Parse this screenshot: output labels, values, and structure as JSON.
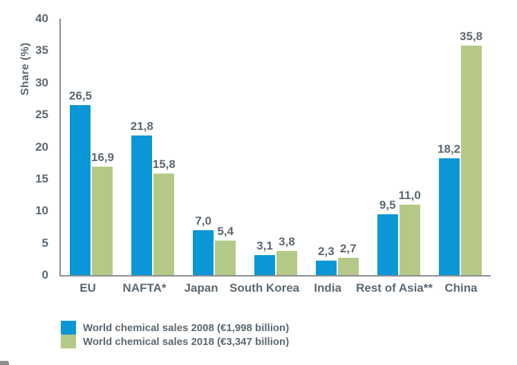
{
  "page": {
    "background_color": "#ffffff",
    "text_color": "#5b6770",
    "axis_color": "#8a8c8f"
  },
  "chart_data": {
    "type": "bar",
    "title": "",
    "ylabel": "Share (%)",
    "xlabel": "",
    "ylim": [
      0,
      40
    ],
    "yticks": [
      40,
      35,
      30,
      25,
      20,
      15,
      10,
      5,
      0
    ],
    "grid": false,
    "legend_position": "bottom-left",
    "decimal_style": "comma",
    "categories": [
      "EU",
      "NAFTA*",
      "Japan",
      "South Korea",
      "India",
      "Rest of Asia**",
      "China"
    ],
    "series": [
      {
        "name": "World chemical sales 2008 (€1,998 billion)",
        "color": "#0b97d5",
        "values": [
          26.5,
          21.8,
          7.0,
          3.1,
          2.3,
          9.5,
          18.2
        ],
        "labels": [
          "26,5",
          "21,8",
          "7,0",
          "3,1",
          "2,3",
          "9,5",
          "18,2"
        ]
      },
      {
        "name": "World chemical sales 2018 (€3,347 billion)",
        "color": "#b4c987",
        "values": [
          16.9,
          15.8,
          5.4,
          3.8,
          2.7,
          11.0,
          35.8
        ],
        "labels": [
          "16,9",
          "15,8",
          "5,4",
          "3,8",
          "2,7",
          "11,0",
          "35,8"
        ]
      }
    ]
  }
}
